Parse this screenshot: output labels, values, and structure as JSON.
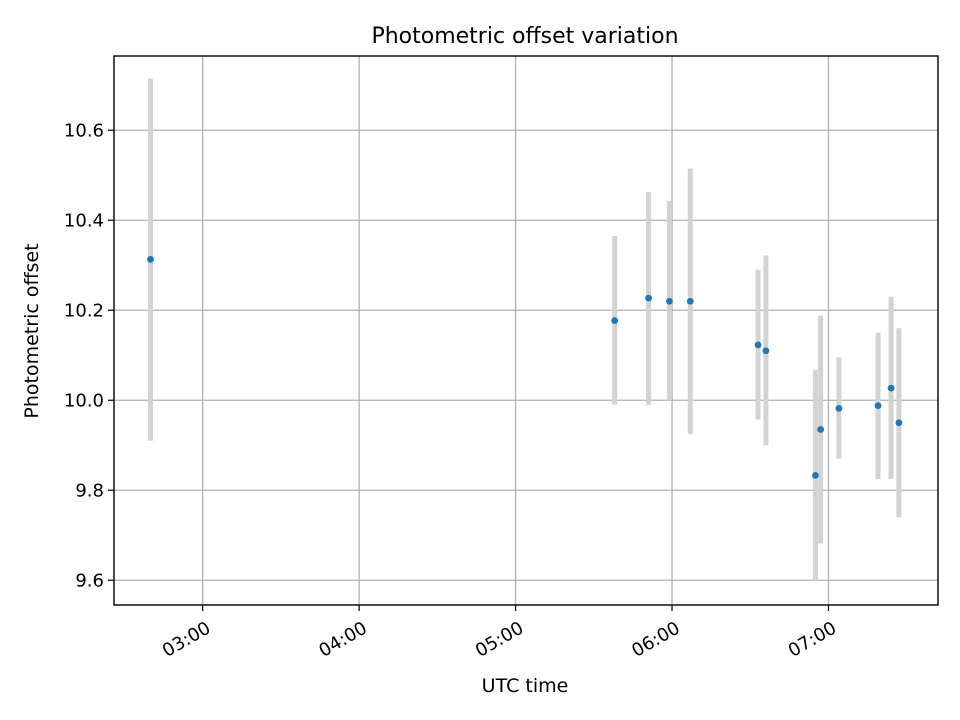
{
  "chart_data": {
    "type": "scatter",
    "title": "Photometric offset variation",
    "xlabel": "UTC time",
    "ylabel": "Photometric offset",
    "grid": true,
    "legend": "none",
    "xlim": [
      "02:26",
      "07:42"
    ],
    "ylim": [
      9.545,
      10.765
    ],
    "x_ticks": [
      "03:00",
      "04:00",
      "05:00",
      "06:00",
      "07:00"
    ],
    "y_ticks": [
      "9.6",
      "9.8",
      "10.0",
      "10.2",
      "10.4",
      "10.6"
    ],
    "points": [
      {
        "x": "02:40",
        "y": 10.313,
        "err_low": 9.91,
        "err_high": 10.715
      },
      {
        "x": "05:38",
        "y": 10.177,
        "err_low": 9.99,
        "err_high": 10.365
      },
      {
        "x": "05:51",
        "y": 10.227,
        "err_low": 9.99,
        "err_high": 10.463
      },
      {
        "x": "05:59",
        "y": 10.22,
        "err_low": 10.0,
        "err_high": 10.443
      },
      {
        "x": "06:07",
        "y": 10.22,
        "err_low": 9.925,
        "err_high": 10.515
      },
      {
        "x": "06:33",
        "y": 10.123,
        "err_low": 9.957,
        "err_high": 10.29
      },
      {
        "x": "06:36",
        "y": 10.11,
        "err_low": 9.9,
        "err_high": 10.322
      },
      {
        "x": "06:55",
        "y": 9.833,
        "err_low": 9.6,
        "err_high": 10.068
      },
      {
        "x": "06:57",
        "y": 9.935,
        "err_low": 9.682,
        "err_high": 10.188
      },
      {
        "x": "07:04",
        "y": 9.982,
        "err_low": 9.87,
        "err_high": 10.095
      },
      {
        "x": "07:19",
        "y": 9.988,
        "err_low": 9.825,
        "err_high": 10.15
      },
      {
        "x": "07:24",
        "y": 10.027,
        "err_low": 9.825,
        "err_high": 10.23
      },
      {
        "x": "07:27",
        "y": 9.95,
        "err_low": 9.74,
        "err_high": 10.16
      }
    ],
    "colors": {
      "point": "#1f77b4",
      "errorbar": "#d3d3d3",
      "grid": "#b0b0b0",
      "axis": "#000000"
    }
  }
}
